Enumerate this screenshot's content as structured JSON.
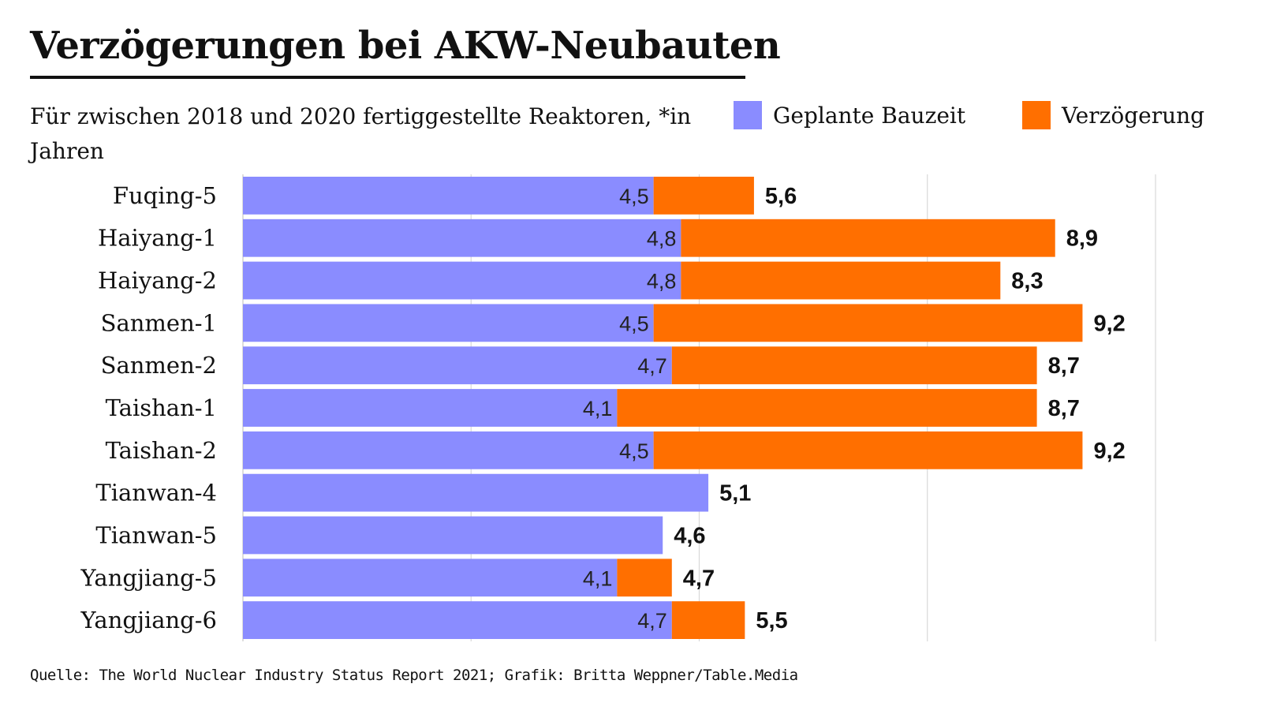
{
  "title": "Verzögerungen bei AKW-Neubauten",
  "subtitle": "Für zwischen 2018 und 2020 fertiggestellte Reaktoren, *in Jahren",
  "source": "Quelle: The World Nuclear Industry Status Report 2021; Grafik: Britta Weppner/Table.Media",
  "colors": {
    "planned": "#8a8cff",
    "delay": "#ff6f00"
  },
  "chart_data": {
    "type": "bar",
    "orientation": "horizontal",
    "stacked": true,
    "categories": [
      "Fuqing-5",
      "Haiyang-1",
      "Haiyang-2",
      "Sanmen-1",
      "Sanmen-2",
      "Taishan-1",
      "Taishan-2",
      "Tianwan-4",
      "Tianwan-5",
      "Yangjiang-5",
      "Yangjiang-6"
    ],
    "series": [
      {
        "name": "Geplante Bauzeit",
        "values": [
          4.5,
          4.8,
          4.8,
          4.5,
          4.7,
          4.1,
          4.5,
          5.1,
          4.6,
          4.1,
          4.7
        ]
      },
      {
        "name": "Verzögerung",
        "values": [
          1.1,
          4.1,
          3.5,
          4.7,
          4.0,
          4.6,
          4.7,
          0,
          0,
          0.6,
          0.8
        ]
      }
    ],
    "planned_labels": [
      "4,5",
      "4,8",
      "4,8",
      "4,5",
      "4,7",
      "4,1",
      "4,5",
      "",
      "",
      "4,1",
      "4,7"
    ],
    "total_labels": [
      "5,6",
      "8,9",
      "8,3",
      "9,2",
      "8,7",
      "8,7",
      "9,2",
      "5,1",
      "4,6",
      "4,7",
      "5,5"
    ],
    "xlim": [
      0,
      10
    ],
    "grid": true,
    "legend": "top-right"
  }
}
